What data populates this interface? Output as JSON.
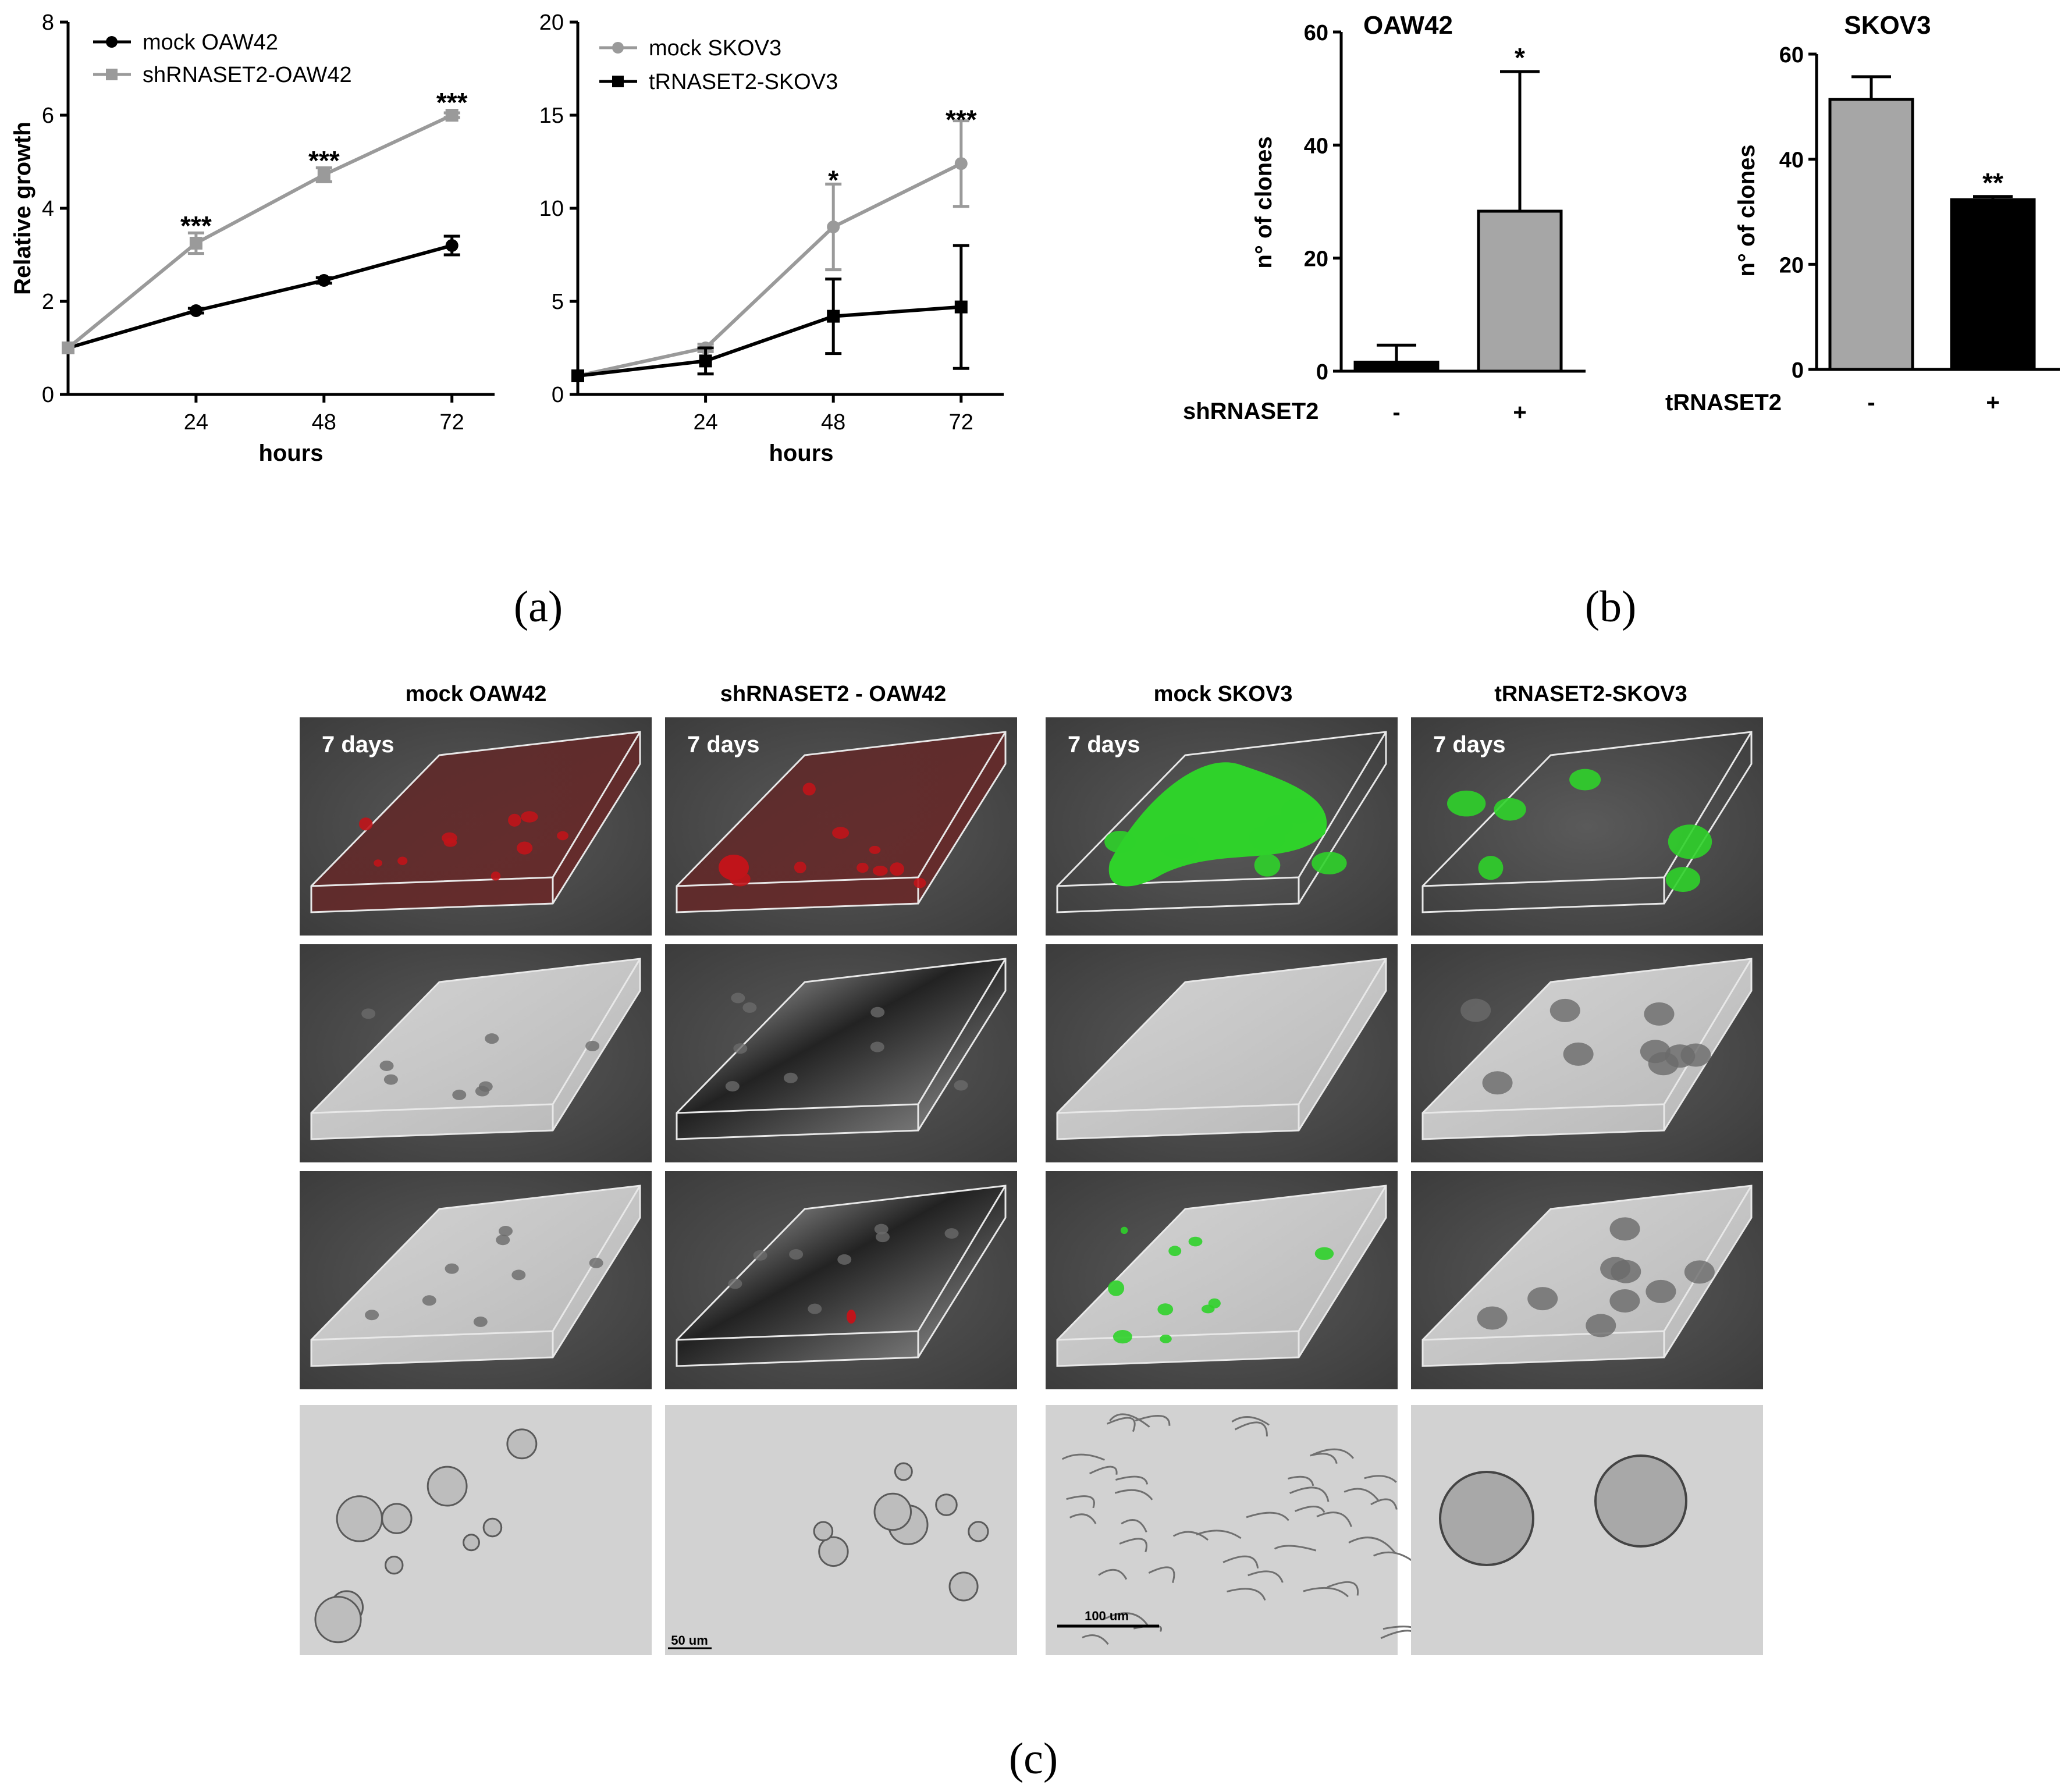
{
  "panel_labels": {
    "a": "(a)",
    "b": "(b)",
    "c": "(c)"
  },
  "colors": {
    "mock_oaw42": "#000000",
    "shrnaset2": "#9a9a9a",
    "mock_skov3": "#9a9a9a",
    "trnaset2": "#000000",
    "bar_gray": "#a6a6a6",
    "bar_black": "#000000",
    "tile_bg": "#4a4a4a",
    "red_signal": "#c0141a",
    "green_signal": "#2fd22a"
  },
  "chart_data": [
    {
      "type": "line",
      "xlabel": "hours",
      "ylabel": "Relative growth",
      "x": [
        0,
        24,
        48,
        72
      ],
      "x_ticks": [
        "24",
        "48",
        "72"
      ],
      "y_ticks": [
        "0",
        "2",
        "4",
        "6",
        "8"
      ],
      "ylim": [
        0,
        8
      ],
      "xlim": [
        0,
        80
      ],
      "legend": "top-left",
      "series": [
        {
          "name": "mock OAW42",
          "values": [
            1.0,
            1.8,
            2.45,
            3.2
          ],
          "err": [
            0,
            0.05,
            0.06,
            0.2
          ],
          "marker": "circle",
          "color": "#000000"
        },
        {
          "name": "shRNASET2-OAW42",
          "values": [
            1.0,
            3.25,
            4.72,
            6.0
          ],
          "err": [
            0,
            0.22,
            0.15,
            0.05
          ],
          "marker": "square",
          "color": "#9a9a9a"
        }
      ],
      "annotations": [
        {
          "x": 24,
          "y": 3.7,
          "text": "***"
        },
        {
          "x": 48,
          "y": 5.1,
          "text": "***"
        },
        {
          "x": 72,
          "y": 6.35,
          "text": "***"
        }
      ]
    },
    {
      "type": "line",
      "xlabel": "hours",
      "ylabel": "",
      "x": [
        0,
        24,
        48,
        72
      ],
      "x_ticks": [
        "24",
        "48",
        "72"
      ],
      "y_ticks": [
        "0",
        "5",
        "10",
        "15",
        "20"
      ],
      "ylim": [
        0,
        20
      ],
      "xlim": [
        0,
        80
      ],
      "legend": "top-left",
      "series": [
        {
          "name": "mock SKOV3",
          "values": [
            1.0,
            2.5,
            9.0,
            12.4
          ],
          "err": [
            0,
            0.2,
            2.3,
            2.3
          ],
          "marker": "circle",
          "color": "#9a9a9a"
        },
        {
          "name": "tRNASET2-SKOV3",
          "values": [
            1.0,
            1.8,
            4.2,
            4.7
          ],
          "err": [
            0,
            0.7,
            2.0,
            3.3
          ],
          "marker": "square",
          "color": "#000000"
        }
      ],
      "annotations": [
        {
          "x": 48,
          "y": 11.7,
          "text": "*"
        },
        {
          "x": 72,
          "y": 14.95,
          "text": "***"
        }
      ]
    },
    {
      "type": "bar",
      "title": "OAW42",
      "ylabel": "n° of clones",
      "group_label": "shRNASET2",
      "categories": [
        "-",
        "+"
      ],
      "values": [
        1.6,
        28.3
      ],
      "err": [
        3.0,
        24.7
      ],
      "bar_colors": [
        "#000000",
        "#a6a6a6"
      ],
      "y_ticks": [
        "0",
        "20",
        "40",
        "60"
      ],
      "ylim": [
        0,
        60
      ],
      "annotations": [
        {
          "category": 1,
          "text": "*"
        }
      ]
    },
    {
      "type": "bar",
      "title": "SKOV3",
      "ylabel": "n° of clones",
      "group_label": "tRNASET2",
      "categories": [
        "-",
        "+"
      ],
      "values": [
        51.4,
        32.3
      ],
      "err": [
        4.3,
        0.6
      ],
      "bar_colors": [
        "#a6a6a6",
        "#000000"
      ],
      "y_ticks": [
        "0",
        "20",
        "40",
        "60"
      ],
      "ylim": [
        0,
        60
      ],
      "annotations": [
        {
          "category": 1,
          "text": "**"
        }
      ]
    }
  ],
  "micrographs": {
    "columns": [
      "mock OAW42",
      "shRNASET2 - OAW42",
      "mock SKOV3",
      "tRNASET2-SKOV3"
    ],
    "days_label": "7 days",
    "scale_bars": [
      "50 um",
      "100 um"
    ]
  }
}
